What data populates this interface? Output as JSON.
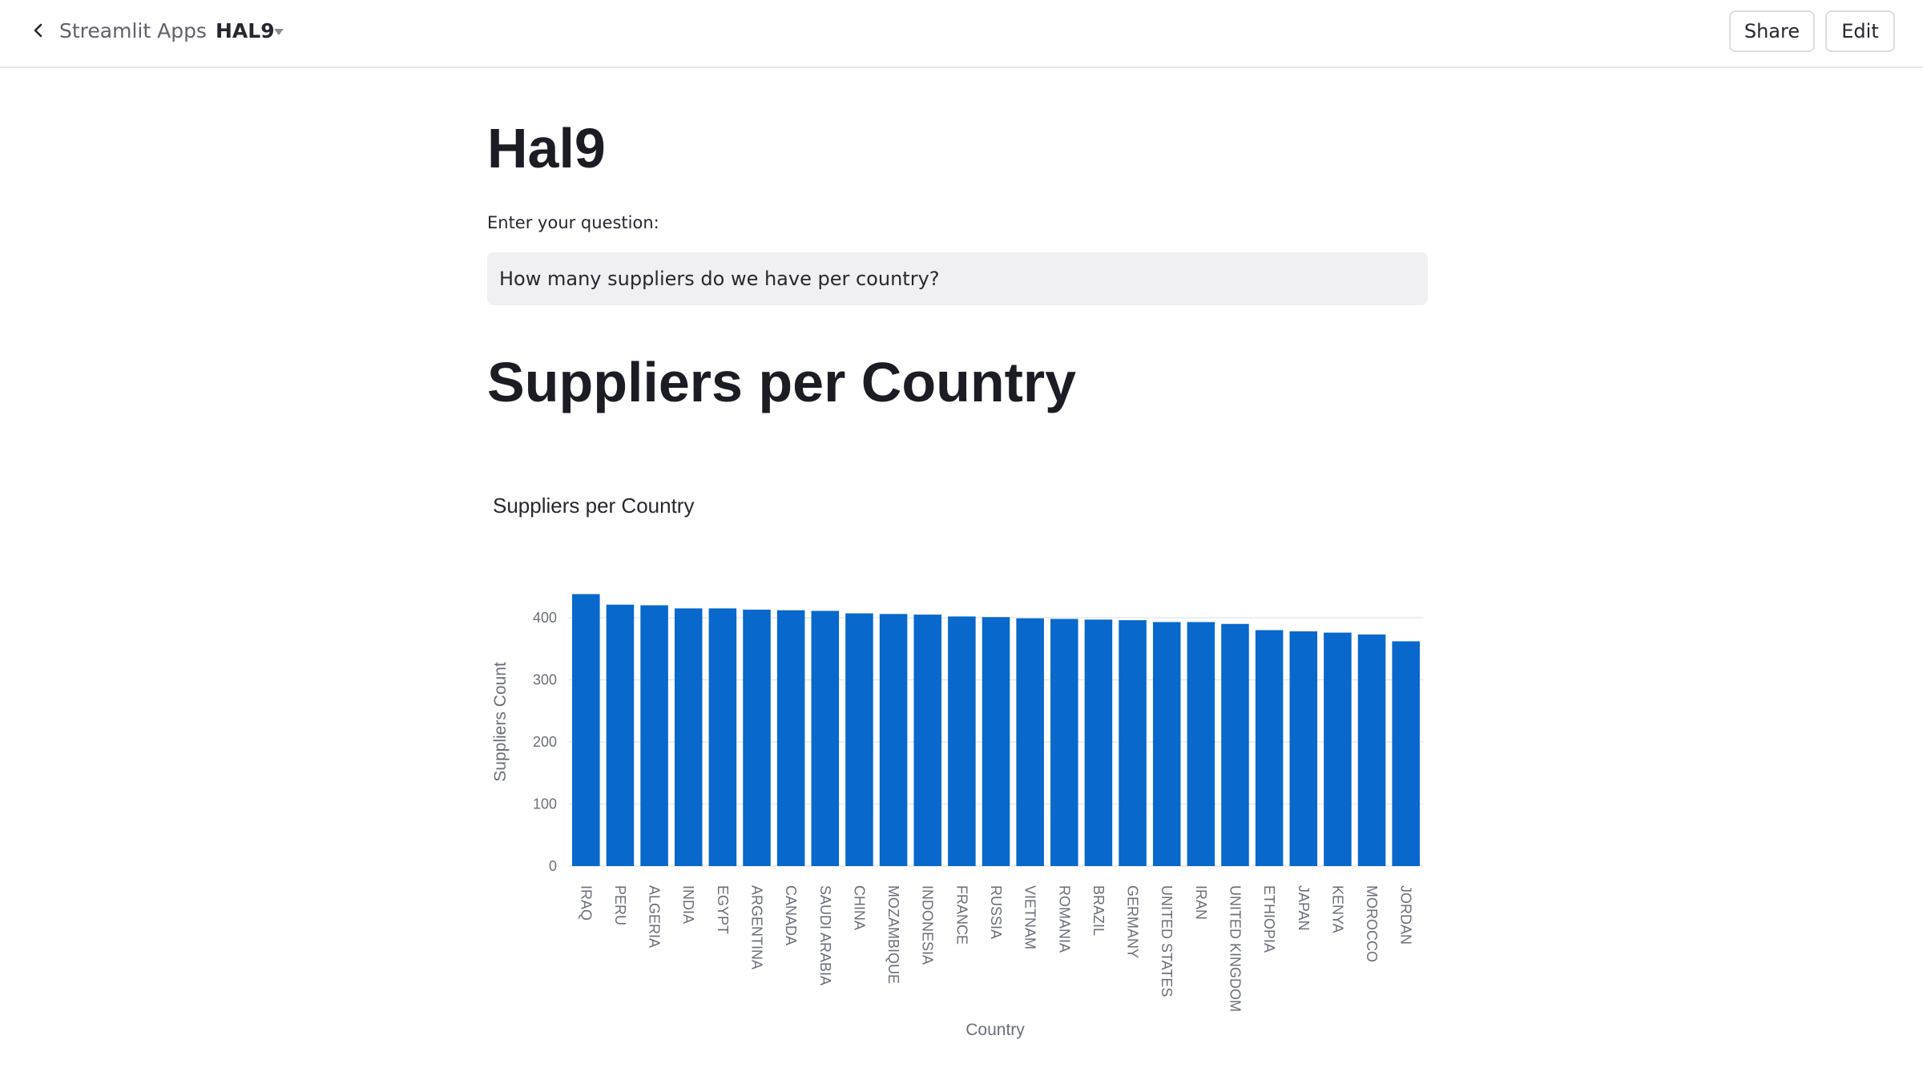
{
  "header": {
    "back_icon": "chevron-left-icon",
    "apps_link": "Streamlit Apps",
    "app_name": "HAL9",
    "dropdown_icon": "caret-down-icon",
    "share_label": "Share",
    "edit_label": "Edit"
  },
  "main": {
    "title": "Hal9",
    "question_label": "Enter your question:",
    "question_value": "How many suppliers do we have per country?",
    "section_title": "Suppliers per Country"
  },
  "colors": {
    "bar": "#0868cb",
    "grid": "#e6e8ec",
    "axis_text": "#6a6e79"
  },
  "chart_data": {
    "type": "bar",
    "title": "Suppliers per Country",
    "xlabel": "Country",
    "ylabel": "Suppliers Count",
    "ylim": [
      0,
      440
    ],
    "yticks": [
      0,
      100,
      200,
      300,
      400
    ],
    "grid": true,
    "categories": [
      "IRAQ",
      "PERU",
      "ALGERIA",
      "INDIA",
      "EGYPT",
      "ARGENTINA",
      "CANADA",
      "SAUDI ARABIA",
      "CHINA",
      "MOZAMBIQUE",
      "INDONESIA",
      "FRANCE",
      "RUSSIA",
      "VIETNAM",
      "ROMANIA",
      "BRAZIL",
      "GERMANY",
      "UNITED STATES",
      "IRAN",
      "UNITED KINGDOM",
      "ETHIOPIA",
      "JAPAN",
      "KENYA",
      "MOROCCO",
      "JORDAN"
    ],
    "values": [
      438,
      421,
      420,
      415,
      415,
      413,
      412,
      411,
      407,
      406,
      405,
      402,
      401,
      399,
      398,
      397,
      396,
      393,
      393,
      390,
      380,
      378,
      376,
      373,
      362
    ]
  }
}
